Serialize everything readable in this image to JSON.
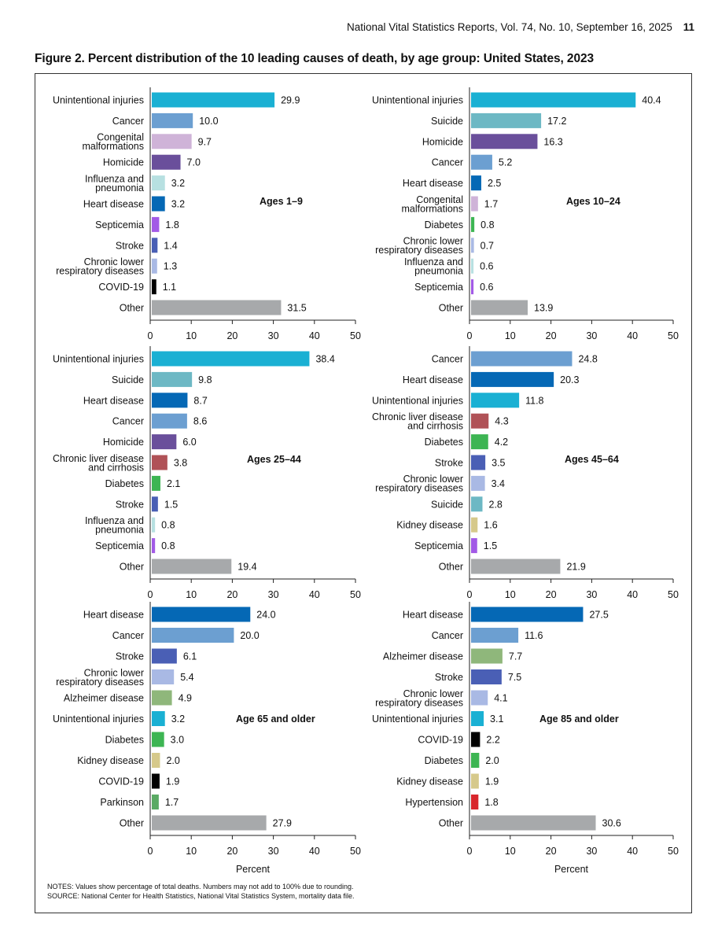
{
  "header": {
    "report": "National Vital Statistics Reports, Vol. 74, No. 10, September 16, 2025",
    "page_number": "11"
  },
  "figure_title": "Figure 2. Percent distribution of the 10 leading causes of death, by age group: United States, 2023",
  "notes": {
    "line1": "NOTES: Values show percentage of total deaths. Numbers may not add to 100% due to rounding.",
    "line2": "SOURCE: National Center for Health Statistics, National Vital Statistics System, mortality data file."
  },
  "colors": {
    "Unintentional injuries": "#1ab0d3",
    "Cancer": "#6c9fd1",
    "Congenital malformations": "#cfb3d8",
    "Homicide": "#6a4f9b",
    "Influenza and pneumonia": "#b7e0e1",
    "Heart disease": "#0568b5",
    "Septicemia": "#a25ae6",
    "Stroke": "#4a5fb5",
    "Chronic lower respiratory diseases": "#a9b9e4",
    "COVID-19": "#000000",
    "Other": "#a7a9ab",
    "Suicide": "#6db8c4",
    "Diabetes": "#3db553",
    "Chronic liver disease and cirrhosis": "#b05257",
    "Kidney disease": "#d6c98b",
    "Alzheimer disease": "#8fb77b",
    "Parkinson": "#5aaa64",
    "Hypertension": "#d8262c"
  },
  "chart_data": [
    {
      "type": "bar",
      "orientation": "horizontal",
      "panel_label": "Ages 1–9",
      "categories": [
        "Unintentional injuries",
        "Cancer",
        "Congenital malformations",
        "Homicide",
        "Influenza and pneumonia",
        "Heart disease",
        "Septicemia",
        "Stroke",
        "Chronic lower respiratory diseases",
        "COVID-19",
        "Other"
      ],
      "label_lines": [
        [
          "Unintentional injuries"
        ],
        [
          "Cancer"
        ],
        [
          "Congenital",
          "malformations"
        ],
        [
          "Homicide"
        ],
        [
          "Influenza and",
          "pneumonia"
        ],
        [
          "Heart disease"
        ],
        [
          "Septicemia"
        ],
        [
          "Stroke"
        ],
        [
          "Chronic lower",
          "respiratory diseases"
        ],
        [
          "COVID-19"
        ],
        [
          "Other"
        ]
      ],
      "values": [
        29.9,
        10.0,
        9.7,
        7.0,
        3.2,
        3.2,
        1.8,
        1.4,
        1.3,
        1.1,
        31.5
      ],
      "value_labels": [
        "29.9",
        "10.0",
        "9.7",
        "7.0",
        "3.2",
        "3.2",
        "1.8",
        "1.4",
        "1.3",
        "1.1",
        "31.5"
      ],
      "xlim": [
        0,
        50
      ],
      "xticks": [
        "0",
        "10",
        "20",
        "30",
        "40",
        "50"
      ],
      "xlabel": ""
    },
    {
      "type": "bar",
      "orientation": "horizontal",
      "panel_label": "Ages 10–24",
      "categories": [
        "Unintentional injuries",
        "Suicide",
        "Homicide",
        "Cancer",
        "Heart disease",
        "Congenital malformations",
        "Diabetes",
        "Chronic lower respiratory diseases",
        "Influenza and pneumonia",
        "Septicemia",
        "Other"
      ],
      "label_lines": [
        [
          "Unintentional injuries"
        ],
        [
          "Suicide"
        ],
        [
          "Homicide"
        ],
        [
          "Cancer"
        ],
        [
          "Heart disease"
        ],
        [
          "Congenital",
          "malformations"
        ],
        [
          "Diabetes"
        ],
        [
          "Chronic lower",
          "respiratory diseases"
        ],
        [
          "Influenza and",
          "pneumonia"
        ],
        [
          "Septicemia"
        ],
        [
          "Other"
        ]
      ],
      "values": [
        40.4,
        17.2,
        16.3,
        5.2,
        2.5,
        1.7,
        0.8,
        0.7,
        0.6,
        0.6,
        13.9
      ],
      "value_labels": [
        "40.4",
        "17.2",
        "16.3",
        "5.2",
        "2.5",
        "1.7",
        "0.8",
        "0.7",
        "0.6",
        "0.6",
        "13.9"
      ],
      "xlim": [
        0,
        50
      ],
      "xticks": [
        "0",
        "10",
        "20",
        "30",
        "40",
        "50"
      ],
      "xlabel": ""
    },
    {
      "type": "bar",
      "orientation": "horizontal",
      "panel_label": "Ages 25–44",
      "categories": [
        "Unintentional injuries",
        "Suicide",
        "Heart disease",
        "Cancer",
        "Homicide",
        "Chronic liver disease and cirrhosis",
        "Diabetes",
        "Stroke",
        "Influenza and pneumonia",
        "Septicemia",
        "Other"
      ],
      "label_lines": [
        [
          "Unintentional injuries"
        ],
        [
          "Suicide"
        ],
        [
          "Heart disease"
        ],
        [
          "Cancer"
        ],
        [
          "Homicide"
        ],
        [
          "Chronic liver disease",
          "and cirrhosis"
        ],
        [
          "Diabetes"
        ],
        [
          "Stroke"
        ],
        [
          "Influenza and",
          "pneumonia"
        ],
        [
          "Septicemia"
        ],
        [
          "Other"
        ]
      ],
      "values": [
        38.4,
        9.8,
        8.7,
        8.6,
        6.0,
        3.8,
        2.1,
        1.5,
        0.8,
        0.8,
        19.4
      ],
      "value_labels": [
        "38.4",
        "9.8",
        "8.7",
        "8.6",
        "6.0",
        "3.8",
        "2.1",
        "1.5",
        "0.8",
        "0.8",
        "19.4"
      ],
      "xlim": [
        0,
        50
      ],
      "xticks": [
        "0",
        "10",
        "20",
        "30",
        "40",
        "50"
      ],
      "xlabel": ""
    },
    {
      "type": "bar",
      "orientation": "horizontal",
      "panel_label": "Ages 45–64",
      "categories": [
        "Cancer",
        "Heart disease",
        "Unintentional injuries",
        "Chronic liver disease and cirrhosis",
        "Diabetes",
        "Stroke",
        "Chronic lower respiratory diseases",
        "Suicide",
        "Kidney disease",
        "Septicemia",
        "Other"
      ],
      "label_lines": [
        [
          "Cancer"
        ],
        [
          "Heart disease"
        ],
        [
          "Unintentional injuries"
        ],
        [
          "Chronic liver disease",
          "and cirrhosis"
        ],
        [
          "Diabetes"
        ],
        [
          "Stroke"
        ],
        [
          "Chronic lower",
          "respiratory diseases"
        ],
        [
          "Suicide"
        ],
        [
          "Kidney disease"
        ],
        [
          "Septicemia"
        ],
        [
          "Other"
        ]
      ],
      "values": [
        24.8,
        20.3,
        11.8,
        4.3,
        4.2,
        3.5,
        3.4,
        2.8,
        1.6,
        1.5,
        21.9
      ],
      "value_labels": [
        "24.8",
        "20.3",
        "11.8",
        "4.3",
        "4.2",
        "3.5",
        "3.4",
        "2.8",
        "1.6",
        "1.5",
        "21.9"
      ],
      "xlim": [
        0,
        50
      ],
      "xticks": [
        "0",
        "10",
        "20",
        "30",
        "40",
        "50"
      ],
      "xlabel": ""
    },
    {
      "type": "bar",
      "orientation": "horizontal",
      "panel_label": "Age 65 and older",
      "categories": [
        "Heart disease",
        "Cancer",
        "Stroke",
        "Chronic lower respiratory diseases",
        "Alzheimer disease",
        "Unintentional injuries",
        "Diabetes",
        "Kidney disease",
        "COVID-19",
        "Parkinson",
        "Other"
      ],
      "label_lines": [
        [
          "Heart disease"
        ],
        [
          "Cancer"
        ],
        [
          "Stroke"
        ],
        [
          "Chronic lower",
          "respiratory diseases"
        ],
        [
          "Alzheimer disease"
        ],
        [
          "Unintentional injuries"
        ],
        [
          "Diabetes"
        ],
        [
          "Kidney disease"
        ],
        [
          "COVID-19"
        ],
        [
          "Parkinson"
        ],
        [
          "Other"
        ]
      ],
      "values": [
        24.0,
        20.0,
        6.1,
        5.4,
        4.9,
        3.2,
        3.0,
        2.0,
        1.9,
        1.7,
        27.9
      ],
      "value_labels": [
        "24.0",
        "20.0",
        "6.1",
        "5.4",
        "4.9",
        "3.2",
        "3.0",
        "2.0",
        "1.9",
        "1.7",
        "27.9"
      ],
      "xlim": [
        0,
        50
      ],
      "xticks": [
        "0",
        "10",
        "20",
        "30",
        "40",
        "50"
      ],
      "xlabel": "Percent"
    },
    {
      "type": "bar",
      "orientation": "horizontal",
      "panel_label": "Age 85 and older",
      "categories": [
        "Heart disease",
        "Cancer",
        "Alzheimer disease",
        "Stroke",
        "Chronic lower respiratory diseases",
        "Unintentional injuries",
        "COVID-19",
        "Diabetes",
        "Kidney disease",
        "Hypertension",
        "Other"
      ],
      "label_lines": [
        [
          "Heart disease"
        ],
        [
          "Cancer"
        ],
        [
          "Alzheimer disease"
        ],
        [
          "Stroke"
        ],
        [
          "Chronic lower",
          "respiratory diseases"
        ],
        [
          "Unintentional injuries"
        ],
        [
          "COVID-19"
        ],
        [
          "Diabetes"
        ],
        [
          "Kidney disease"
        ],
        [
          "Hypertension"
        ],
        [
          "Other"
        ]
      ],
      "values": [
        27.5,
        11.6,
        7.7,
        7.5,
        4.1,
        3.1,
        2.2,
        2.0,
        1.9,
        1.8,
        30.6
      ],
      "value_labels": [
        "27.5",
        "11.6",
        "7.7",
        "7.5",
        "4.1",
        "3.1",
        "2.2",
        "2.0",
        "1.9",
        "1.8",
        "30.6"
      ],
      "xlim": [
        0,
        50
      ],
      "xticks": [
        "0",
        "10",
        "20",
        "30",
        "40",
        "50"
      ],
      "xlabel": "Percent"
    }
  ]
}
